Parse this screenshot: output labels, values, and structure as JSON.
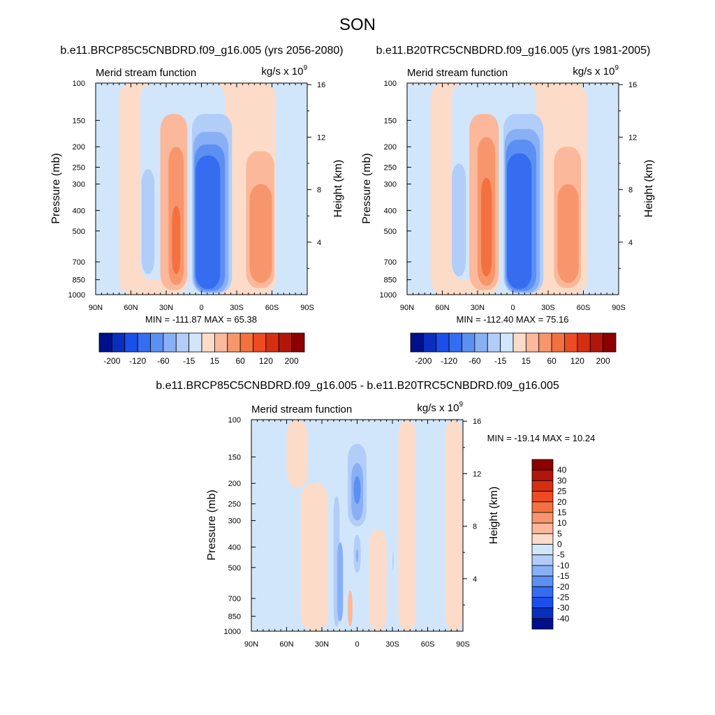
{
  "figure_title": "SON",
  "chart_data": [
    {
      "type": "heatmap",
      "title": "b.e11.BRCP85C5CNBDRD.f09_g16.005 (yrs 2056-2080)",
      "left_label": "Merid stream function",
      "units": "kg/s x 10",
      "units_exp": "9",
      "xlabel": "",
      "ylabel": "Pressure (mb)",
      "y2label": "Height (km)",
      "x_ticks": [
        "90N",
        "60N",
        "30N",
        "0",
        "30S",
        "60S",
        "90S"
      ],
      "x_values": [
        90,
        60,
        30,
        0,
        -30,
        -60,
        -90
      ],
      "y_ticks": [
        100,
        150,
        200,
        250,
        300,
        400,
        500,
        700,
        850,
        1000
      ],
      "y2_ticks": [
        16,
        12,
        8,
        4
      ],
      "ylim": [
        1000,
        100
      ],
      "stats": "MIN = -111.87  MAX = 65.38",
      "min": -111.87,
      "max": 65.38,
      "colorbar_labels": [
        "-200",
        "-120",
        "-60",
        "-15",
        "15",
        "60",
        "120",
        "200"
      ],
      "cells": [
        {
          "lat_min": 12,
          "lat_max": 70,
          "p_min": 100,
          "p_max": 1000,
          "value": 5
        },
        {
          "lat_min": -63,
          "lat_max": -8,
          "p_min": 100,
          "p_max": 1000,
          "value": 5
        },
        {
          "lat_min": 8,
          "lat_max": 52,
          "p_min": 100,
          "p_max": 850,
          "value": -5
        },
        {
          "lat_min": -20,
          "lat_max": 8,
          "p_min": 100,
          "p_max": 1000,
          "value": -5
        },
        {
          "lat_min": 40,
          "lat_max": 51,
          "p_min": 255,
          "p_max": 800,
          "value": -15
        },
        {
          "lat_min": 12,
          "lat_max": 35,
          "p_min": 140,
          "p_max": 950,
          "value": 15
        },
        {
          "lat_min": 15,
          "lat_max": 28,
          "p_min": 200,
          "p_max": 900,
          "value": 30
        },
        {
          "lat_min": 18,
          "lat_max": 25,
          "p_min": 380,
          "p_max": 800,
          "value": 60
        },
        {
          "lat_min": -26,
          "lat_max": 8,
          "p_min": 140,
          "p_max": 980,
          "value": -15
        },
        {
          "lat_min": -23,
          "lat_max": 7,
          "p_min": 170,
          "p_max": 980,
          "value": -30
        },
        {
          "lat_min": -20,
          "lat_max": 6,
          "p_min": 195,
          "p_max": 960,
          "value": -60
        },
        {
          "lat_min": -16,
          "lat_max": 5,
          "p_min": 220,
          "p_max": 940,
          "value": -90
        },
        {
          "lat_min": -38,
          "lat_max": -62,
          "p_min": 210,
          "p_max": 930,
          "value": 15
        },
        {
          "lat_min": -41,
          "lat_max": -60,
          "p_min": 300,
          "p_max": 880,
          "value": 30
        }
      ]
    },
    {
      "type": "heatmap",
      "title": "b.e11.B20TRC5CNBDRD.f09_g16.005 (yrs 1981-2005)",
      "left_label": "Merid stream function",
      "units": "kg/s x 10",
      "units_exp": "9",
      "xlabel": "",
      "ylabel": "Pressure (mb)",
      "y2label": "Height (km)",
      "x_ticks": [
        "90N",
        "60N",
        "30N",
        "0",
        "30S",
        "60S",
        "90S"
      ],
      "x_values": [
        90,
        60,
        30,
        0,
        -30,
        -60,
        -90
      ],
      "y_ticks": [
        100,
        150,
        200,
        250,
        300,
        400,
        500,
        700,
        850,
        1000
      ],
      "y2_ticks": [
        16,
        12,
        8,
        4
      ],
      "ylim": [
        1000,
        100
      ],
      "stats": "MIN = -112.40  MAX = 75.16",
      "min": -112.4,
      "max": 75.16,
      "colorbar_labels": [
        "-200",
        "-120",
        "-60",
        "-15",
        "15",
        "60",
        "120",
        "200"
      ],
      "cells": [
        {
          "lat_min": 12,
          "lat_max": 70,
          "p_min": 100,
          "p_max": 1000,
          "value": 5
        },
        {
          "lat_min": -63,
          "lat_max": -8,
          "p_min": 100,
          "p_max": 1000,
          "value": 5
        },
        {
          "lat_min": 8,
          "lat_max": 52,
          "p_min": 100,
          "p_max": 850,
          "value": -5
        },
        {
          "lat_min": -20,
          "lat_max": 8,
          "p_min": 100,
          "p_max": 1000,
          "value": -5
        },
        {
          "lat_min": 40,
          "lat_max": 52,
          "p_min": 240,
          "p_max": 820,
          "value": -15
        },
        {
          "lat_min": 12,
          "lat_max": 37,
          "p_min": 140,
          "p_max": 950,
          "value": 15
        },
        {
          "lat_min": 15,
          "lat_max": 30,
          "p_min": 180,
          "p_max": 910,
          "value": 30
        },
        {
          "lat_min": 18,
          "lat_max": 27,
          "p_min": 280,
          "p_max": 820,
          "value": 60
        },
        {
          "lat_min": -26,
          "lat_max": 8,
          "p_min": 140,
          "p_max": 980,
          "value": -15
        },
        {
          "lat_min": -23,
          "lat_max": 7,
          "p_min": 165,
          "p_max": 980,
          "value": -30
        },
        {
          "lat_min": -20,
          "lat_max": 6,
          "p_min": 185,
          "p_max": 960,
          "value": -60
        },
        {
          "lat_min": -16,
          "lat_max": 5,
          "p_min": 215,
          "p_max": 940,
          "value": -90
        },
        {
          "lat_min": -35,
          "lat_max": -58,
          "p_min": 200,
          "p_max": 930,
          "value": 15
        },
        {
          "lat_min": -38,
          "lat_max": -56,
          "p_min": 300,
          "p_max": 880,
          "value": 30
        }
      ]
    },
    {
      "type": "heatmap",
      "title": "b.e11.BRCP85C5CNBDRD.f09_g16.005 - b.e11.B20TRC5CNBDRD.f09_g16.005",
      "left_label": "Merid stream function",
      "units": "kg/s x 10",
      "units_exp": "9",
      "xlabel": "",
      "ylabel": "Pressure (mb)",
      "y2label": "Height (km)",
      "x_ticks": [
        "90N",
        "60N",
        "30N",
        "0",
        "30S",
        "60S",
        "90S"
      ],
      "x_values": [
        90,
        60,
        30,
        0,
        -30,
        -60,
        -90
      ],
      "y_ticks": [
        100,
        150,
        200,
        250,
        300,
        400,
        500,
        700,
        850,
        1000
      ],
      "y2_ticks": [
        16,
        12,
        8,
        4
      ],
      "ylim": [
        1000,
        100
      ],
      "stats": "MIN = -19.14  MAX =  10.24",
      "min": -19.14,
      "max": 10.24,
      "colorbar_labels": [
        "40",
        "30",
        "25",
        "20",
        "15",
        "10",
        "5",
        "0",
        "-5",
        "-10",
        "-15",
        "-20",
        "-25",
        "-30",
        "-40"
      ],
      "cells": [
        {
          "lat_min": 80,
          "lat_max": 90,
          "p_min": 100,
          "p_max": 1000,
          "value": -2
        },
        {
          "lat_min": 50,
          "lat_max": 80,
          "p_min": 100,
          "p_max": 1000,
          "value": -2
        },
        {
          "lat_min": 42,
          "lat_max": 60,
          "p_min": 100,
          "p_max": 210,
          "value": 2
        },
        {
          "lat_min": 25,
          "lat_max": 48,
          "p_min": 200,
          "p_max": 1000,
          "value": 2
        },
        {
          "lat_min": -25,
          "lat_max": -10,
          "p_min": 330,
          "p_max": 1000,
          "value": 2
        },
        {
          "lat_min": -35,
          "lat_max": -50,
          "p_min": 100,
          "p_max": 1000,
          "value": 2
        },
        {
          "lat_min": -75,
          "lat_max": -90,
          "p_min": 100,
          "p_max": 1000,
          "value": 2
        },
        {
          "lat_min": 15,
          "lat_max": 20,
          "p_min": 230,
          "p_max": 950,
          "value": -7
        },
        {
          "lat_min": 12,
          "lat_max": 17,
          "p_min": 380,
          "p_max": 900,
          "value": -12
        },
        {
          "lat_min": -8,
          "lat_max": 8,
          "p_min": 130,
          "p_max": 320,
          "value": -7
        },
        {
          "lat_min": -5,
          "lat_max": 5,
          "p_min": 160,
          "p_max": 300,
          "value": -12
        },
        {
          "lat_min": -3,
          "lat_max": 3,
          "p_min": 185,
          "p_max": 250,
          "value": -17
        },
        {
          "lat_min": -3,
          "lat_max": 3,
          "p_min": 350,
          "p_max": 530,
          "value": -7
        },
        {
          "lat_min": -1,
          "lat_max": 1,
          "p_min": 410,
          "p_max": 470,
          "value": -12
        },
        {
          "lat_min": 4,
          "lat_max": 8,
          "p_min": 640,
          "p_max": 950,
          "value": 7
        },
        {
          "lat_min": -30,
          "lat_max": -31,
          "p_min": 420,
          "p_max": 520,
          "value": -7
        }
      ]
    }
  ],
  "colors": {
    "pos": [
      "#fcdcc8",
      "#fbb89b",
      "#f7966c",
      "#f3713f",
      "#ec4b23",
      "#d52f13",
      "#b2160a",
      "#8b0000"
    ],
    "neg": [
      "#d2e6fb",
      "#b1cdf8",
      "#89b0f5",
      "#5c8ff2",
      "#356cf0",
      "#1c4ee9",
      "#0a2fbf",
      "#000f8a"
    ]
  }
}
